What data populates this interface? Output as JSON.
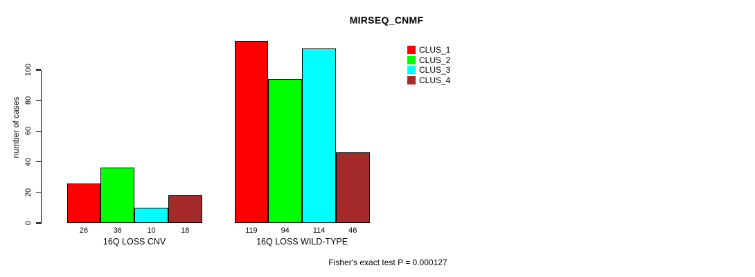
{
  "chart_data": {
    "type": "bar",
    "title": "MIRSEQ_CNMF",
    "ylabel": "number of cases",
    "xlabel": "",
    "ylim": [
      0,
      100
    ],
    "yticks": [
      0,
      20,
      40,
      60,
      80,
      100
    ],
    "grid": false,
    "categories": [
      "16Q LOSS CNV",
      "16Q LOSS WILD-TYPE"
    ],
    "series": [
      {
        "name": "CLUS_1",
        "color": "#ff0000",
        "values": [
          26,
          119
        ]
      },
      {
        "name": "CLUS_2",
        "color": "#00ff00",
        "values": [
          36,
          94
        ]
      },
      {
        "name": "CLUS_3",
        "color": "#00ffff",
        "values": [
          10,
          114
        ]
      },
      {
        "name": "CLUS_4",
        "color": "#a52a2a",
        "values": [
          18,
          46
        ]
      }
    ],
    "bar_value_labels": [
      [
        26,
        36,
        10,
        18
      ],
      [
        119,
        94,
        114,
        46
      ]
    ],
    "legend_position": "top-right",
    "annotation": "Fisher's exact test P = 0.000127"
  }
}
